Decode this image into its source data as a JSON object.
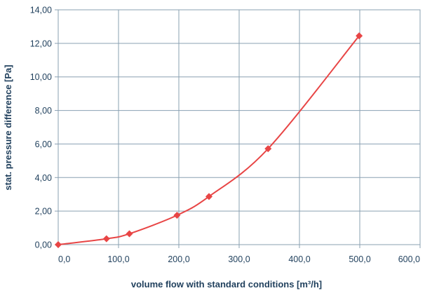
{
  "chart_data": {
    "type": "line",
    "title": "",
    "xlabel": "volume flow with standard conditions [m³/h]",
    "ylabel": "stat. pressure difference [Pa]",
    "xlim": [
      0,
      600
    ],
    "ylim": [
      0,
      14
    ],
    "x_ticks": [
      "0,0",
      "100,0",
      "200,0",
      "300,0",
      "400,0",
      "500,0",
      "600,0"
    ],
    "y_ticks": [
      "0,00",
      "2,00",
      "4,00",
      "6,00",
      "8,00",
      "10,00",
      "12,00",
      "14,00"
    ],
    "grid": true,
    "series": [
      {
        "color": "#e84545",
        "marker": "diamond",
        "smooth": true,
        "points": [
          {
            "x": 0,
            "y": 0.0
          },
          {
            "x": 80,
            "y": 0.35
          },
          {
            "x": 118,
            "y": 0.65
          },
          {
            "x": 197,
            "y": 1.75
          },
          {
            "x": 250,
            "y": 2.87
          },
          {
            "x": 348,
            "y": 5.72
          },
          {
            "x": 499,
            "y": 12.45
          }
        ]
      }
    ]
  }
}
